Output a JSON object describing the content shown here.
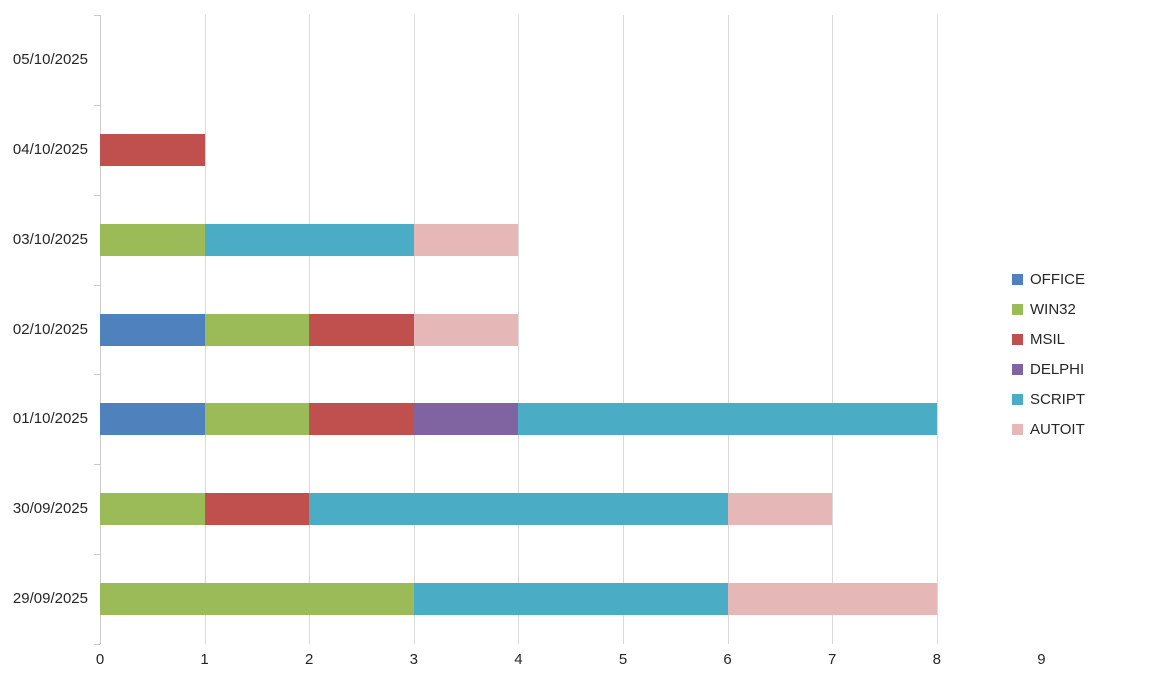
{
  "background_color": "#ffffff",
  "text_color": "#262626",
  "grid_color": "#d9d9d9",
  "axis_color": "#c9c9c9",
  "chart_data": {
    "type": "bar",
    "orientation": "horizontal",
    "stacked": true,
    "title": "",
    "xlabel": "",
    "ylabel": "",
    "grid": true,
    "legend_position": "right",
    "xlim": [
      0,
      9
    ],
    "x_ticks": [
      0,
      1,
      2,
      3,
      4,
      5,
      6,
      7,
      8,
      9
    ],
    "gridline_values": [
      0,
      1,
      2,
      3,
      4,
      5,
      6,
      7,
      8
    ],
    "categories": [
      "05/10/2025",
      "04/10/2025",
      "03/10/2025",
      "02/10/2025",
      "01/10/2025",
      "30/09/2025",
      "29/09/2025"
    ],
    "series": [
      {
        "name": "OFFICE",
        "color": "#4F81BD",
        "values": [
          0,
          0,
          0,
          1,
          1,
          0,
          0
        ]
      },
      {
        "name": "WIN32",
        "color": "#9BBB59",
        "values": [
          0,
          0,
          1,
          1,
          1,
          1,
          3
        ]
      },
      {
        "name": "MSIL",
        "color": "#C0504D",
        "values": [
          0,
          1,
          0,
          1,
          1,
          1,
          0
        ]
      },
      {
        "name": "DELPHI",
        "color": "#8064A2",
        "values": [
          0,
          0,
          0,
          0,
          1,
          0,
          0
        ]
      },
      {
        "name": "SCRIPT",
        "color": "#4BACC6",
        "values": [
          0,
          0,
          2,
          0,
          4,
          4,
          3
        ]
      },
      {
        "name": "AUTOIT",
        "color": "#E5B8B7",
        "values": [
          0,
          0,
          1,
          1,
          0,
          1,
          2
        ]
      }
    ],
    "totals_per_category": [
      0,
      1,
      4,
      4,
      8,
      7,
      8
    ]
  }
}
